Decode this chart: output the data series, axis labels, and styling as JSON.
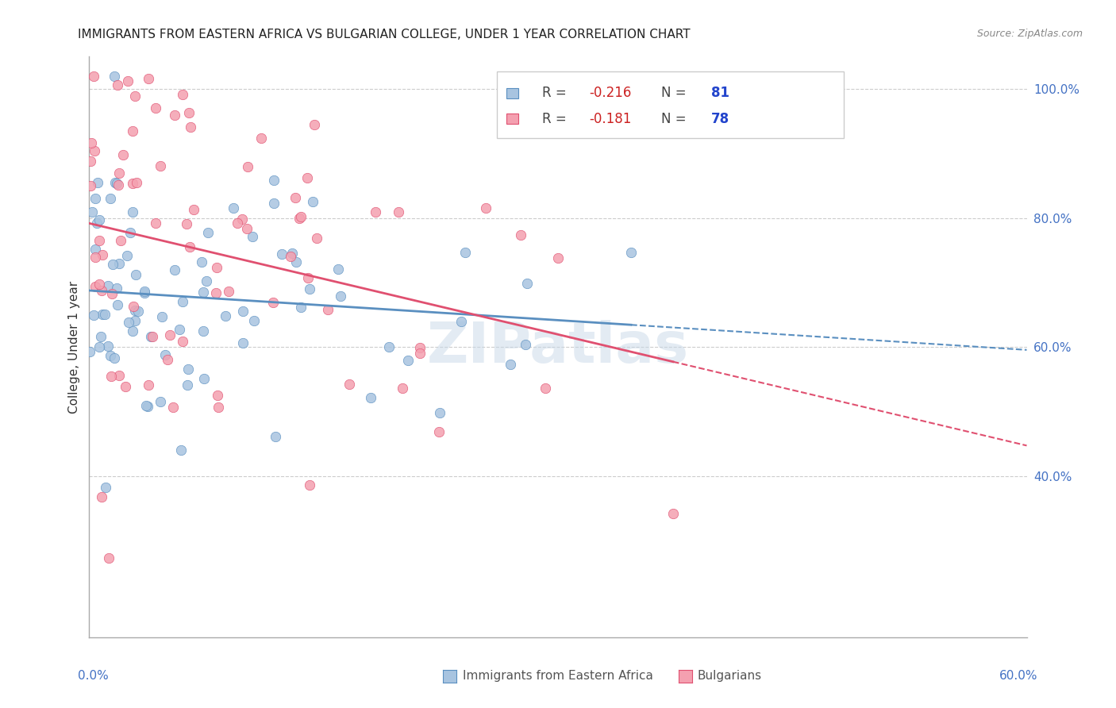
{
  "title": "IMMIGRANTS FROM EASTERN AFRICA VS BULGARIAN COLLEGE, UNDER 1 YEAR CORRELATION CHART",
  "source": "Source: ZipAtlas.com",
  "ylabel": "College, Under 1 year",
  "legend_blue_label": "Immigrants from Eastern Africa",
  "legend_pink_label": "Bulgarians",
  "R_blue": -0.216,
  "N_blue": 81,
  "R_pink": -0.181,
  "N_pink": 78,
  "color_blue": "#a8c4e0",
  "color_pink": "#f4a0b0",
  "line_blue": "#5a8fc0",
  "line_pink": "#e05070",
  "watermark": "ZIPatlas",
  "xlim": [
    0.0,
    0.6
  ],
  "ylim": [
    0.15,
    1.05
  ]
}
